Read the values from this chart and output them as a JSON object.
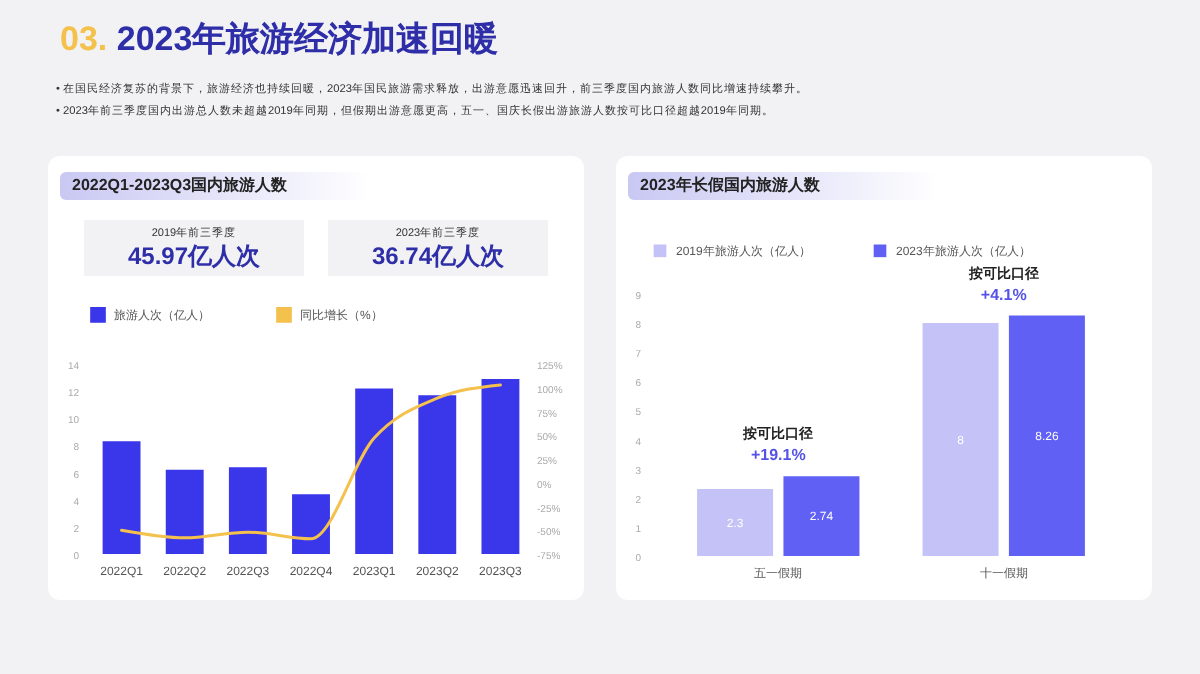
{
  "chart_data": [
    {
      "type": "other",
      "title": "03. 2023年旅游经济加速回暖",
      "annotations": [
        "•  在国民经济复苏的背景下，旅游经济也持续回暖，2023年国民旅游需求释放，出游意愿迅速回升，前三季度国内旅游人数同比增速持续攀升。",
        "•  2023年前三季度国内出游总人数未超越2019年同期，但假期出游意愿更高，五一、国庆长假出游旅游人数按可比口径超越2019年同期。"
      ]
    },
    {
      "type": "bar",
      "title": "2022Q1-2023Q3国内旅游人数",
      "annotations": [
        "2019年前三季度",
        "45.97亿人次",
        "2023年前三季度",
        "36.74亿人次"
      ],
      "categories": [
        "2022Q1",
        "2022Q2",
        "2022Q3",
        "2022Q4",
        "2023Q1",
        "2023Q2",
        "2023Q3"
      ],
      "series": [
        {
          "name": "旅游人次（亿人）",
          "color": "#3a36ea",
          "values": [
            8.3,
            6.2,
            6.4,
            4.4,
            12.2,
            11.7,
            12.9
          ]
        },
        {
          "name": "同比增长（%）",
          "type": "line",
          "axis": "y2",
          "color": "#f3c14c",
          "values": [
            -50,
            -58,
            -52,
            -59,
            47,
            89,
            103
          ]
        }
      ],
      "ylim": [
        0,
        14
      ],
      "yticks": [
        0,
        2,
        4,
        6,
        8,
        10,
        12,
        14
      ],
      "y2lim": [
        -75,
        125
      ],
      "y2ticks": [
        {
          "value": -75,
          "label": "-75%"
        },
        {
          "value": -50,
          "label": "-50%"
        },
        {
          "value": -25,
          "label": "-25%"
        },
        {
          "value": 0,
          "label": "0%"
        },
        {
          "value": 25,
          "label": "25%"
        },
        {
          "value": 50,
          "label": "50%"
        },
        {
          "value": 75,
          "label": "75%"
        },
        {
          "value": 100,
          "label": "100%"
        },
        {
          "value": 125,
          "label": "125%"
        }
      ],
      "legend": "top"
    },
    {
      "type": "bar",
      "title": "2023年长假国内旅游人数",
      "categories": [
        "五一假期",
        "十一假期"
      ],
      "series": [
        {
          "name": "2019年旅游人次（亿人）",
          "color": "#c4c2f7",
          "values": [
            2.3,
            8
          ]
        },
        {
          "name": "2023年旅游人次（亿人）",
          "color": "#6160f4",
          "values": [
            2.74,
            8.26
          ]
        }
      ],
      "annotations": [
        "按可比口径",
        "+19.1%",
        "按可比口径",
        "+4.1%"
      ],
      "ylim": [
        0,
        9
      ],
      "yticks": [
        0,
        1,
        2,
        3,
        4,
        5,
        6,
        7,
        8,
        9
      ],
      "data_labels": true,
      "legend": "top"
    }
  ]
}
